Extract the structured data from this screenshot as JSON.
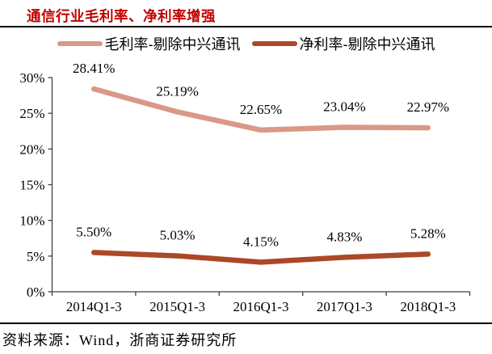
{
  "header": {
    "title": "通信行业毛利率、净利率增强",
    "title_color": "#C00000"
  },
  "chart_data": {
    "type": "line",
    "title": "通信行业毛利率、净利率增强",
    "categories": [
      "2014Q1-3",
      "2015Q1-3",
      "2016Q1-3",
      "2017Q1-3",
      "2018Q1-3"
    ],
    "series": [
      {
        "name": "毛利率-剔除中兴通讯",
        "color": "#DA9886",
        "values": [
          28.41,
          25.19,
          22.65,
          23.04,
          22.97
        ],
        "point_labels": [
          "28.41%",
          "25.19%",
          "22.65%",
          "23.04%",
          "22.97%"
        ]
      },
      {
        "name": "净利率-剔除中兴通讯",
        "color": "#AC4828",
        "values": [
          5.5,
          5.03,
          4.15,
          4.83,
          5.28
        ],
        "point_labels": [
          "5.50%",
          "5.03%",
          "4.15%",
          "4.83%",
          "5.28%"
        ]
      }
    ],
    "xlabel": "",
    "ylabel": "",
    "ylim": [
      0,
      30
    ],
    "ytick_step": 5,
    "ytick_labels": [
      "0%",
      "5%",
      "10%",
      "15%",
      "20%",
      "25%",
      "30%"
    ],
    "grid": false,
    "legend_position": "top",
    "axis_color": "#404040",
    "label_color": "#000000"
  },
  "footer": {
    "source": "资料来源：Wind，浙商证券研究所"
  }
}
